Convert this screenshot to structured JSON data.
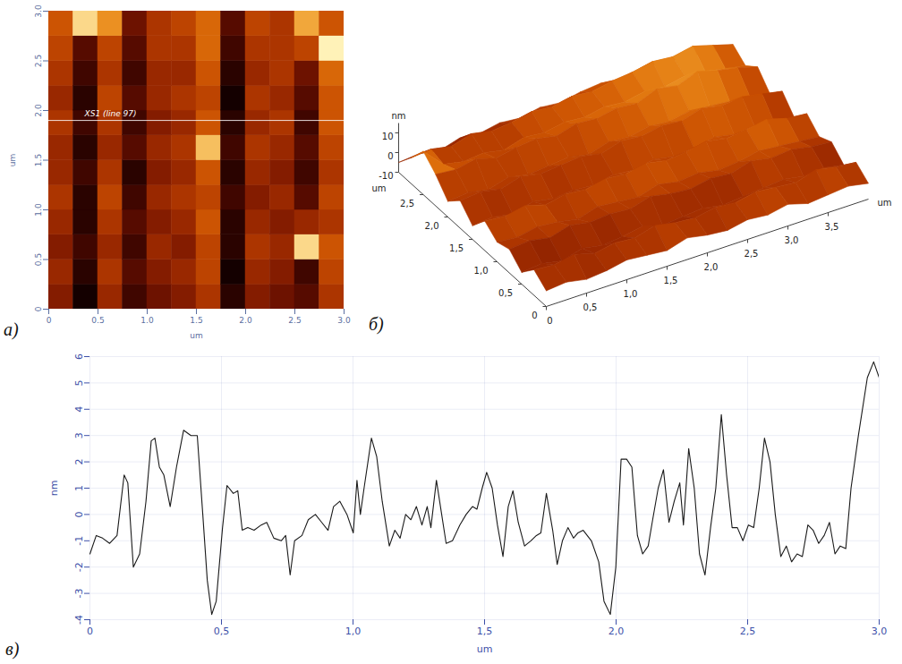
{
  "chart_data": [
    {
      "type": "heatmap",
      "panel": "а)",
      "x_label": "um",
      "y_label": "um",
      "xlim": [
        0,
        3
      ],
      "ylim": [
        0,
        3
      ],
      "xticks": [
        0,
        0.5,
        {
          "value": 1,
          "label": "1.0"
        },
        1.5,
        {
          "value": 2,
          "label": "2.0"
        },
        2.5,
        {
          "value": 3,
          "label": "3.0"
        }
      ],
      "yticks": [
        0,
        0.5,
        {
          "value": 1,
          "label": "1.0"
        },
        1.5,
        {
          "value": 2,
          "label": "2.0"
        },
        2.5,
        {
          "value": 3,
          "label": "3.0"
        }
      ],
      "annotation": {
        "y": 1.9,
        "text": "XS1 (line 97)"
      },
      "cells": [
        [
          0,
          -2.5,
          0.5,
          -1.5,
          -0.5,
          0,
          1,
          -2,
          0,
          -0.5,
          -1,
          1
        ],
        [
          0.5,
          -2,
          1,
          -1,
          0,
          0.5,
          1.5,
          -2.5,
          0.5,
          0,
          -1.5,
          1.5
        ],
        [
          0,
          -1.5,
          0.5,
          -1.5,
          0.5,
          0,
          1.5,
          -2,
          1,
          0.5,
          5,
          2
        ],
        [
          0.5,
          -2,
          1,
          -1,
          0,
          0.5,
          2,
          -2,
          0.5,
          0,
          0.5,
          1
        ],
        [
          1,
          -2,
          1.5,
          -1.5,
          0.5,
          1,
          1.5,
          -1.5,
          0,
          0.5,
          -1,
          1.5
        ],
        [
          0.5,
          -1.5,
          1,
          -2,
          0,
          0.5,
          2,
          -2,
          0.5,
          0,
          -1.5,
          1
        ],
        [
          0.5,
          -2,
          0.5,
          -1,
          0.5,
          1,
          4.5,
          -1.5,
          1,
          0.5,
          -1,
          1.5
        ],
        [
          1,
          -1.5,
          1,
          -1.5,
          0,
          0.5,
          2,
          -2,
          0.5,
          1,
          -1.5,
          2
        ],
        [
          0.5,
          -2,
          1.5,
          -1,
          0.5,
          1,
          1.5,
          -2.5,
          1,
          0.5,
          -1,
          2
        ],
        [
          1,
          -1.5,
          1,
          -1.5,
          0.5,
          0.5,
          2,
          -2,
          0.5,
          1,
          -0.5,
          2.5
        ],
        [
          1.5,
          -1,
          1.5,
          -1,
          1,
          1,
          2.5,
          -1.5,
          1,
          1,
          1.5,
          5.5
        ],
        [
          2,
          5,
          3.5,
          -0.5,
          1,
          1.5,
          2.5,
          -1,
          1.5,
          1,
          4,
          2
        ]
      ]
    },
    {
      "type": "surface",
      "panel": "б)",
      "x_label": "um",
      "y_label": "um",
      "z_label": "nm",
      "xlim": [
        0,
        4
      ],
      "ylim": [
        0,
        3
      ],
      "zlim": [
        -10,
        15
      ],
      "xticks": [
        0,
        {
          "value": 0.5,
          "label": "0,5"
        },
        {
          "value": 1,
          "label": "1,0"
        },
        {
          "value": 1.5,
          "label": "1,5"
        },
        {
          "value": 2,
          "label": "2,0"
        },
        {
          "value": 2.5,
          "label": "2,5"
        },
        {
          "value": 3,
          "label": "3,0"
        },
        {
          "value": 3.5,
          "label": "3,5"
        }
      ],
      "yticks": [
        0,
        {
          "value": 0.5,
          "label": "0,5"
        },
        {
          "value": 1,
          "label": "1,0"
        },
        {
          "value": 1.5,
          "label": "1,5"
        },
        {
          "value": 2,
          "label": "2,0"
        },
        {
          "value": 2.5,
          "label": "2,5"
        }
      ],
      "zticks": [
        -10,
        0,
        10
      ],
      "heights": [
        [
          -2,
          -1,
          -3,
          -2,
          0,
          -1,
          -2,
          1,
          -1,
          -2,
          0,
          -1,
          1,
          -2,
          -1,
          0,
          -2
        ],
        [
          3,
          2,
          4,
          1,
          3,
          2,
          5,
          3,
          2,
          4,
          3,
          5,
          4,
          3,
          6,
          4,
          3
        ],
        [
          -4,
          -3,
          -5,
          -2,
          -4,
          -3,
          -1,
          -4,
          -3,
          -2,
          -4,
          -3,
          -2,
          -1,
          -3,
          -2,
          -4
        ],
        [
          2,
          3,
          1,
          4,
          2,
          3,
          2,
          5,
          3,
          2,
          4,
          3,
          6,
          4,
          5,
          3,
          2
        ],
        [
          0,
          -1,
          1,
          0,
          -2,
          1,
          0,
          -1,
          2,
          0,
          1,
          -1,
          0,
          2,
          1,
          0,
          -1
        ],
        [
          5,
          4,
          6,
          3,
          5,
          4,
          6,
          5,
          7,
          5,
          6,
          8,
          6,
          7,
          9,
          6,
          5
        ],
        [
          -3,
          -2,
          -4,
          -1,
          -3,
          -2,
          -3,
          -1,
          -2,
          0,
          -2,
          -1,
          1,
          -1,
          0,
          -2,
          -3
        ],
        [
          4,
          5,
          3,
          6,
          4,
          5,
          6,
          4,
          7,
          6,
          8,
          7,
          10,
          8,
          9,
          7,
          5
        ],
        [
          -2,
          -1,
          -3,
          0,
          -2,
          -1,
          0,
          -2,
          1,
          0,
          2,
          1,
          3,
          2,
          1,
          0,
          -2
        ],
        [
          6,
          5,
          7,
          4,
          6,
          7,
          5,
          8,
          7,
          9,
          8,
          12,
          10,
          14,
          11,
          9,
          6
        ],
        [
          12,
          2,
          0,
          1,
          -1,
          2,
          1,
          3,
          2,
          4,
          3,
          5,
          4,
          6,
          5,
          3,
          1
        ],
        [
          3,
          4,
          2,
          5,
          3,
          4,
          6,
          5,
          7,
          6,
          8,
          9,
          11,
          10,
          12,
          9,
          6
        ],
        [
          -5,
          -4,
          -6,
          -3,
          -4,
          -2,
          -3,
          -1,
          -2,
          0,
          1,
          0,
          2,
          1,
          0,
          -1,
          -3
        ]
      ]
    },
    {
      "type": "line",
      "panel": "в)",
      "x_label": "um",
      "y_label": "nm",
      "color": "#1a1a1a",
      "grid": true,
      "xlim": [
        0,
        3
      ],
      "ylim": [
        -4,
        6
      ],
      "xticks": [
        0,
        {
          "value": 0.5,
          "label": "0,5"
        },
        {
          "value": 1,
          "label": "1,0"
        },
        {
          "value": 1.5,
          "label": "1,5"
        },
        {
          "value": 2,
          "label": "2,0"
        },
        {
          "value": 2.5,
          "label": "2,5"
        },
        {
          "value": 3,
          "label": "3,0"
        }
      ],
      "yticks": [
        -4,
        -3,
        -2,
        -1,
        0,
        1,
        2,
        3,
        4,
        5,
        6
      ],
      "x": [
        0,
        0.024,
        0.048,
        0.075,
        0.103,
        0.13,
        0.144,
        0.165,
        0.189,
        0.213,
        0.233,
        0.247,
        0.264,
        0.281,
        0.305,
        0.329,
        0.356,
        0.384,
        0.408,
        0.429,
        0.446,
        0.463,
        0.48,
        0.504,
        0.521,
        0.545,
        0.562,
        0.579,
        0.6,
        0.624,
        0.651,
        0.672,
        0.699,
        0.727,
        0.744,
        0.761,
        0.778,
        0.806,
        0.83,
        0.857,
        0.881,
        0.905,
        0.926,
        0.95,
        0.977,
        1.001,
        1.015,
        1.028,
        1.042,
        1.07,
        1.09,
        1.111,
        1.138,
        1.159,
        1.179,
        1.2,
        1.22,
        1.241,
        1.262,
        1.282,
        1.296,
        1.317,
        1.337,
        1.354,
        1.378,
        1.406,
        1.43,
        1.454,
        1.471,
        1.491,
        1.508,
        1.529,
        1.549,
        1.57,
        1.59,
        1.608,
        1.628,
        1.652,
        1.676,
        1.697,
        1.714,
        1.735,
        1.759,
        1.776,
        1.796,
        1.817,
        1.838,
        1.855,
        1.875,
        1.906,
        1.934,
        1.954,
        1.978,
        1.999,
        2.019,
        2.04,
        2.06,
        2.081,
        2.101,
        2.122,
        2.139,
        2.16,
        2.18,
        2.201,
        2.221,
        2.242,
        2.256,
        2.276,
        2.297,
        2.317,
        2.338,
        2.359,
        2.379,
        2.4,
        2.42,
        2.441,
        2.461,
        2.482,
        2.503,
        2.523,
        2.544,
        2.564,
        2.585,
        2.605,
        2.626,
        2.647,
        2.667,
        2.688,
        2.708,
        2.729,
        2.749,
        2.77,
        2.791,
        2.811,
        2.832,
        2.852,
        2.873,
        2.893,
        2.921,
        2.955,
        2.979,
        3.0
      ],
      "values": [
        -1.5,
        -0.8,
        -0.9,
        -1.1,
        -0.8,
        1.5,
        1.2,
        -2.0,
        -1.5,
        0.5,
        2.8,
        2.9,
        1.8,
        1.5,
        0.3,
        1.8,
        3.2,
        3.0,
        3.0,
        0.0,
        -2.5,
        -3.8,
        -3.3,
        -0.5,
        1.1,
        0.8,
        0.9,
        -0.6,
        -0.5,
        -0.6,
        -0.4,
        -0.3,
        -0.9,
        -1.0,
        -0.8,
        -2.3,
        -1.0,
        -0.8,
        -0.2,
        0.0,
        -0.3,
        -0.6,
        0.3,
        0.5,
        0.0,
        -0.7,
        1.3,
        0.0,
        1.0,
        2.9,
        2.2,
        0.5,
        -1.2,
        -0.6,
        -0.9,
        0.0,
        -0.2,
        0.3,
        -0.4,
        0.3,
        -0.5,
        1.3,
        0.0,
        -1.1,
        -1.0,
        -0.4,
        0.0,
        0.3,
        0.2,
        1.0,
        1.6,
        1.0,
        -0.4,
        -1.6,
        0.3,
        0.9,
        -0.3,
        -1.2,
        -1.0,
        -0.8,
        -0.7,
        0.8,
        -0.6,
        -1.9,
        -1.0,
        -0.5,
        -0.9,
        -0.7,
        -0.6,
        -1.0,
        -1.8,
        -3.3,
        -3.8,
        -2.0,
        2.1,
        2.1,
        1.8,
        -0.8,
        -1.5,
        -1.2,
        -0.2,
        1.0,
        1.7,
        -0.3,
        0.5,
        1.2,
        -0.4,
        2.5,
        1.0,
        -1.5,
        -2.3,
        -0.5,
        1.0,
        3.8,
        1.5,
        -0.5,
        -0.5,
        -1.0,
        -0.4,
        -0.5,
        1.0,
        2.9,
        2.0,
        0.0,
        -1.6,
        -1.2,
        -1.8,
        -1.5,
        -1.6,
        -0.4,
        -0.6,
        -1.1,
        -0.8,
        -0.3,
        -1.5,
        -1.2,
        -1.3,
        1.0,
        3.0,
        5.2,
        5.8,
        5.2
      ]
    }
  ]
}
